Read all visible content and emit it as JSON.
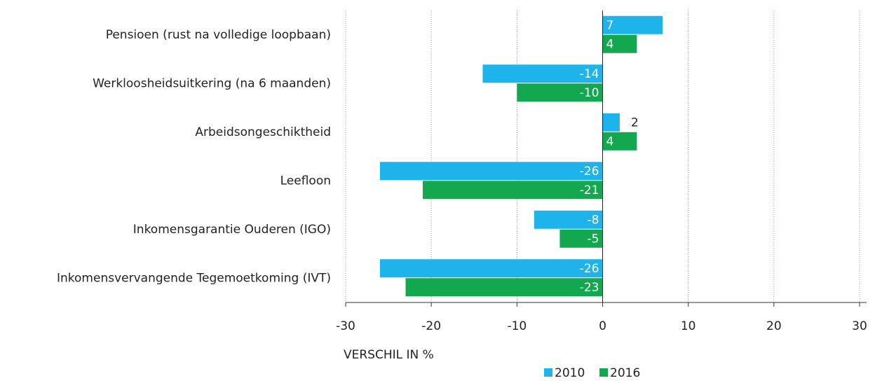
{
  "chart_data": {
    "type": "bar",
    "orientation": "horizontal",
    "categories": [
      "Pensioen (rust na volledige loopbaan)",
      "Werkloosheidsuitkering (na 6 maanden)",
      "Arbeidsongeschiktheid",
      "Leefloon",
      "Inkomensgarantie Ouderen (IGO)",
      "Inkomensvervangende Tegemoetkoming (IVT)"
    ],
    "series": [
      {
        "name": "2010",
        "color": "#1fb3ec",
        "values": [
          7,
          -14,
          2,
          -26,
          -8,
          -26
        ]
      },
      {
        "name": "2016",
        "color": "#13a84f",
        "values": [
          4,
          -10,
          4,
          -21,
          -5,
          -23
        ]
      }
    ],
    "xlim": [
      -30,
      30
    ],
    "xticks": [
      -30,
      -20,
      -10,
      0,
      10,
      20,
      30
    ],
    "xlabel": "VERSCHIL IN %",
    "grid": true,
    "legend": "bottom"
  }
}
